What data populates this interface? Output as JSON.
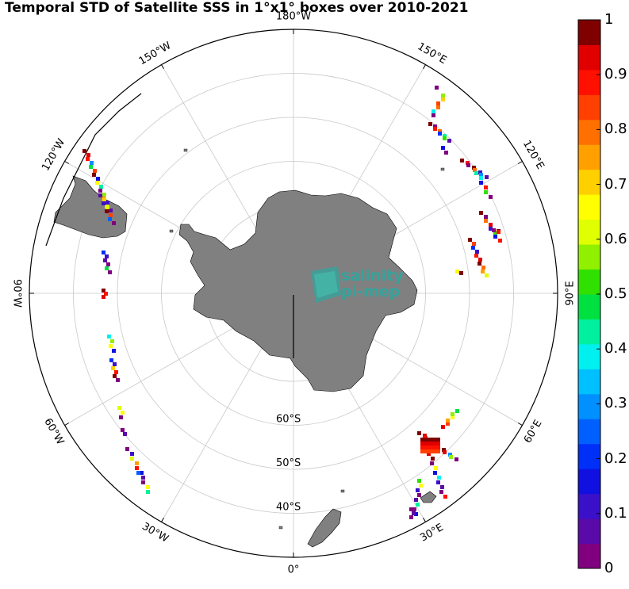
{
  "title": "Temporal STD of Satellite SSS in 1°x1° boxes over 2010-2021",
  "logo": {
    "line1": "salinity",
    "line2": "pi-mep"
  },
  "lon_labels": [
    {
      "name": "lon-label-0",
      "text": "0°",
      "lon": 0
    },
    {
      "name": "lon-label-30e",
      "text": "30°E",
      "lon": 30
    },
    {
      "name": "lon-label-60e",
      "text": "60°E",
      "lon": 60
    },
    {
      "name": "lon-label-90e",
      "text": "90°E",
      "lon": 90
    },
    {
      "name": "lon-label-120e",
      "text": "120°E",
      "lon": 120
    },
    {
      "name": "lon-label-150e",
      "text": "150°E",
      "lon": 150
    },
    {
      "name": "lon-label-180w",
      "text": "180°W",
      "lon": 180
    },
    {
      "name": "lon-label-150w",
      "text": "150°W",
      "lon": -150
    },
    {
      "name": "lon-label-120w",
      "text": "120°W",
      "lon": -120
    },
    {
      "name": "lon-label-90w",
      "text": "90°W",
      "lon": -90
    },
    {
      "name": "lon-label-60w",
      "text": "60°W",
      "lon": -60
    },
    {
      "name": "lon-label-30w",
      "text": "30°W",
      "lon": -30
    }
  ],
  "lat_labels": [
    {
      "name": "lat-label-60s",
      "text": "60°S",
      "lat": -60
    },
    {
      "name": "lat-label-50s",
      "text": "50°S",
      "lat": -50
    },
    {
      "name": "lat-label-40s",
      "text": "40°S",
      "lat": -40
    }
  ],
  "colorbar": {
    "min": 0,
    "max": 1,
    "tick_labels": [
      "0",
      "0.1",
      "0.2",
      "0.3",
      "0.4",
      "0.5",
      "0.6",
      "0.7",
      "0.8",
      "0.9",
      "1"
    ],
    "colors": [
      "#800080",
      "#5a0aa8",
      "#3a10c8",
      "#1010e0",
      "#0030f8",
      "#0060ff",
      "#0090ff",
      "#00c0ff",
      "#00f0f0",
      "#00f0a0",
      "#00e040",
      "#30e000",
      "#90f000",
      "#e0ff00",
      "#ffff00",
      "#ffd000",
      "#ffa000",
      "#ff7000",
      "#ff4000",
      "#ff1000",
      "#e00000",
      "#800000"
    ]
  },
  "colors": {
    "land": "#808080",
    "grid": "#c8c8c8",
    "frame": "#000000"
  },
  "map": {
    "projection": "south-polar-stereographic",
    "lat_circles": [
      -70,
      -60,
      -50,
      -40
    ],
    "meridian_step_deg": 30
  }
}
